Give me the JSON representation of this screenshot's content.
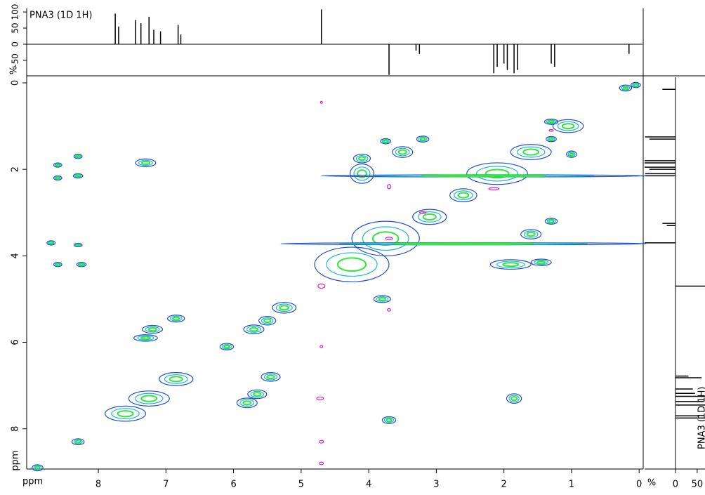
{
  "chart_data": {
    "type": "nmr2d",
    "title": "PNA3 (1D 1H)",
    "side_title": "PNA3 (1D 1H)",
    "xlabel": "ppm",
    "ylabel": "ppm",
    "xlim": [
      9.06,
      -0.05
    ],
    "xticks": [
      8,
      7,
      6,
      5,
      4,
      3,
      2,
      1,
      0
    ],
    "ylim": [
      -0.13,
      8.93
    ],
    "yticks": [
      0,
      2,
      4,
      6,
      8
    ],
    "contour_colors": [
      "#1f4fd8",
      "#1fb8d8",
      "#2ee83a"
    ],
    "negative_color": "#e020c8",
    "spectrum": {
      "ylabel": "%",
      "ylim": [
        -98,
        111
      ],
      "yticks": [
        -50,
        0,
        50,
        100
      ],
      "side_xlabel": "%",
      "side_xlim": [
        -71,
        68
      ],
      "side_xticks": [
        0,
        50
      ],
      "color": "#000000",
      "peaks": [
        [
          7.75,
          95
        ],
        [
          7.7,
          55
        ],
        [
          7.45,
          75
        ],
        [
          7.37,
          65
        ],
        [
          7.25,
          85
        ],
        [
          7.18,
          45
        ],
        [
          7.08,
          40
        ],
        [
          6.82,
          60
        ],
        [
          6.78,
          30
        ],
        [
          4.7,
          108
        ],
        [
          3.7,
          -95
        ],
        [
          3.3,
          -20
        ],
        [
          3.25,
          -30
        ],
        [
          2.15,
          -90
        ],
        [
          2.1,
          -70
        ],
        [
          2.0,
          -60
        ],
        [
          1.95,
          -80
        ],
        [
          1.85,
          -90
        ],
        [
          1.8,
          -80
        ],
        [
          1.3,
          -60
        ],
        [
          1.25,
          -70
        ],
        [
          0.15,
          -30
        ]
      ]
    },
    "cross_peaks": [
      {
        "x": 8.9,
        "y": 8.9,
        "w": 0.16,
        "h": 0.14
      },
      {
        "x": 8.3,
        "y": 8.3,
        "w": 0.18,
        "h": 0.14
      },
      {
        "x": 7.6,
        "y": 7.65,
        "w": 0.6,
        "h": 0.35
      },
      {
        "x": 7.25,
        "y": 7.3,
        "w": 0.6,
        "h": 0.35
      },
      {
        "x": 6.85,
        "y": 6.85,
        "w": 0.5,
        "h": 0.3
      },
      {
        "x": 6.1,
        "y": 6.1,
        "w": 0.2,
        "h": 0.15
      },
      {
        "x": 5.7,
        "y": 5.7,
        "w": 0.3,
        "h": 0.2
      },
      {
        "x": 5.5,
        "y": 5.5,
        "w": 0.25,
        "h": 0.2
      },
      {
        "x": 5.25,
        "y": 5.2,
        "w": 0.35,
        "h": 0.25
      },
      {
        "x": 4.25,
        "y": 4.2,
        "w": 1.1,
        "h": 0.8
      },
      {
        "x": 3.75,
        "y": 3.6,
        "w": 1.0,
        "h": 0.8
      },
      {
        "x": 3.1,
        "y": 3.1,
        "w": 0.5,
        "h": 0.35
      },
      {
        "x": 2.6,
        "y": 2.6,
        "w": 0.4,
        "h": 0.3
      },
      {
        "x": 2.1,
        "y": 2.1,
        "w": 0.9,
        "h": 0.5
      },
      {
        "x": 1.6,
        "y": 1.6,
        "w": 0.6,
        "h": 0.35
      },
      {
        "x": 1.05,
        "y": 1.0,
        "w": 0.45,
        "h": 0.3
      },
      {
        "x": 0.2,
        "y": 0.12,
        "w": 0.18,
        "h": 0.14
      },
      {
        "x": 0.05,
        "y": 0.05,
        "w": 0.14,
        "h": 0.12
      },
      {
        "x": 8.6,
        "y": 1.9,
        "w": 0.12,
        "h": 0.1
      },
      {
        "x": 8.6,
        "y": 2.2,
        "w": 0.12,
        "h": 0.1
      },
      {
        "x": 8.3,
        "y": 1.7,
        "w": 0.12,
        "h": 0.1
      },
      {
        "x": 8.3,
        "y": 2.15,
        "w": 0.14,
        "h": 0.1
      },
      {
        "x": 8.7,
        "y": 3.7,
        "w": 0.12,
        "h": 0.1
      },
      {
        "x": 8.3,
        "y": 3.75,
        "w": 0.12,
        "h": 0.08
      },
      {
        "x": 8.6,
        "y": 4.2,
        "w": 0.12,
        "h": 0.1
      },
      {
        "x": 8.25,
        "y": 4.2,
        "w": 0.14,
        "h": 0.1
      },
      {
        "x": 7.3,
        "y": 1.85,
        "w": 0.3,
        "h": 0.18
      },
      {
        "x": 6.85,
        "y": 5.45,
        "w": 0.25,
        "h": 0.16
      },
      {
        "x": 7.2,
        "y": 5.7,
        "w": 0.3,
        "h": 0.18
      },
      {
        "x": 7.3,
        "y": 5.9,
        "w": 0.35,
        "h": 0.15
      },
      {
        "x": 5.45,
        "y": 6.8,
        "w": 0.28,
        "h": 0.2
      },
      {
        "x": 5.65,
        "y": 7.2,
        "w": 0.28,
        "h": 0.2
      },
      {
        "x": 5.8,
        "y": 7.4,
        "w": 0.3,
        "h": 0.22
      },
      {
        "x": 3.7,
        "y": 7.8,
        "w": 0.2,
        "h": 0.16
      },
      {
        "x": 1.85,
        "y": 7.3,
        "w": 0.22,
        "h": 0.22
      },
      {
        "x": 4.1,
        "y": 1.75,
        "w": 0.25,
        "h": 0.2
      },
      {
        "x": 4.1,
        "y": 2.1,
        "w": 0.35,
        "h": 0.45
      },
      {
        "x": 3.5,
        "y": 1.6,
        "w": 0.3,
        "h": 0.25
      },
      {
        "x": 3.75,
        "y": 1.35,
        "w": 0.15,
        "h": 0.12
      },
      {
        "x": 3.2,
        "y": 1.3,
        "w": 0.18,
        "h": 0.14
      },
      {
        "x": 1.3,
        "y": 1.3,
        "w": 0.15,
        "h": 0.12
      },
      {
        "x": 1.0,
        "y": 1.65,
        "w": 0.15,
        "h": 0.15
      },
      {
        "x": 1.3,
        "y": 0.9,
        "w": 0.2,
        "h": 0.12
      },
      {
        "x": 1.6,
        "y": 3.5,
        "w": 0.3,
        "h": 0.22
      },
      {
        "x": 1.3,
        "y": 3.2,
        "w": 0.18,
        "h": 0.14
      },
      {
        "x": 1.9,
        "y": 4.2,
        "w": 0.6,
        "h": 0.22
      },
      {
        "x": 1.45,
        "y": 4.15,
        "w": 0.3,
        "h": 0.15
      },
      {
        "x": 3.8,
        "y": 5.0,
        "w": 0.25,
        "h": 0.16
      },
      {
        "x": 2.3,
        "y": 2.15,
        "w": 4.8,
        "h": 0.05
      },
      {
        "x": 2.6,
        "y": 3.72,
        "w": 5.4,
        "h": 0.05
      }
    ],
    "negative_peaks": [
      {
        "x": 4.7,
        "y": 0.45,
        "w": 0.03,
        "h": 0.05
      },
      {
        "x": 4.7,
        "y": 4.7,
        "w": 0.1,
        "h": 0.1
      },
      {
        "x": 4.7,
        "y": 6.1,
        "w": 0.04,
        "h": 0.05
      },
      {
        "x": 4.72,
        "y": 7.3,
        "w": 0.1,
        "h": 0.07
      },
      {
        "x": 4.7,
        "y": 8.3,
        "w": 0.06,
        "h": 0.06
      },
      {
        "x": 4.7,
        "y": 8.8,
        "w": 0.06,
        "h": 0.06
      },
      {
        "x": 3.7,
        "y": 2.4,
        "w": 0.05,
        "h": 0.1
      },
      {
        "x": 3.2,
        "y": 3.0,
        "w": 0.1,
        "h": 0.04
      },
      {
        "x": 3.7,
        "y": 3.6,
        "w": 0.1,
        "h": 0.06
      },
      {
        "x": 2.15,
        "y": 2.45,
        "w": 0.15,
        "h": 0.05
      },
      {
        "x": 1.3,
        "y": 1.1,
        "w": 0.06,
        "h": 0.04
      },
      {
        "x": 3.7,
        "y": 5.25,
        "w": 0.05,
        "h": 0.06
      }
    ]
  }
}
